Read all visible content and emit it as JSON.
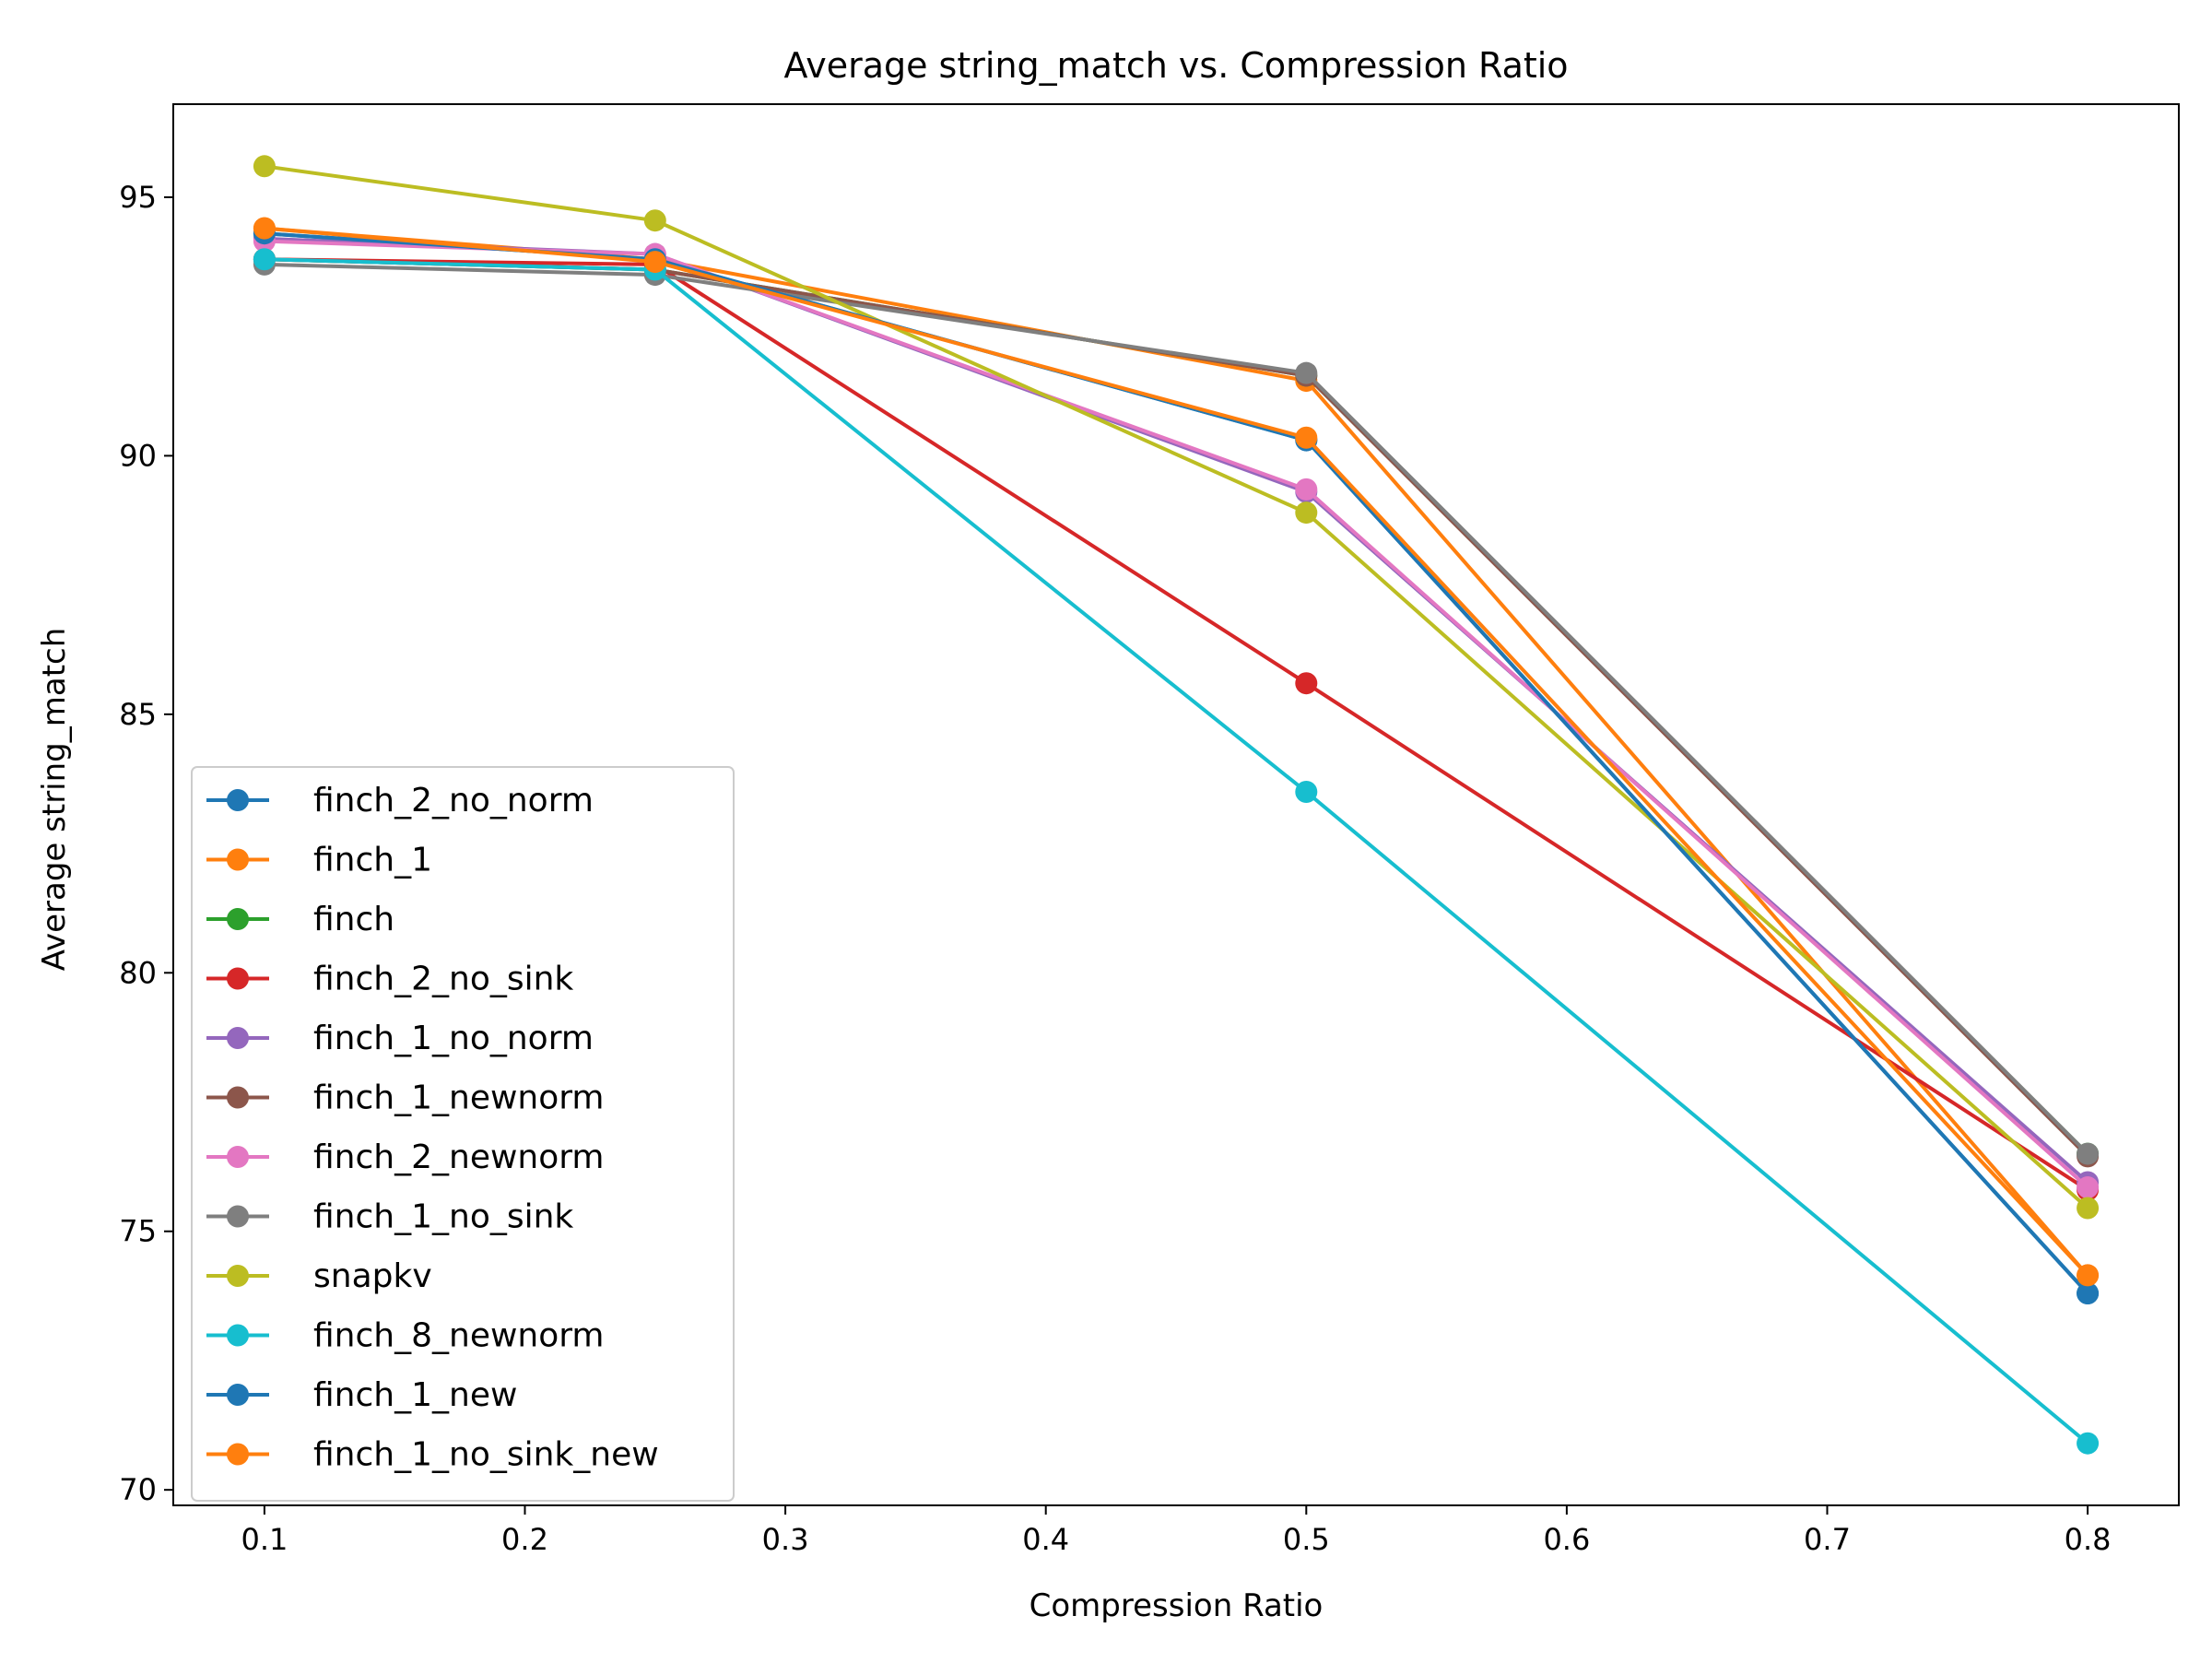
{
  "chart_data": {
    "type": "line",
    "title": "Average string_match vs. Compression Ratio",
    "xlabel": "Compression Ratio",
    "ylabel": "Average string_match",
    "xlim": [
      0.065,
      0.835
    ],
    "ylim": [
      69.7,
      96.8
    ],
    "x": [
      0.1,
      0.25,
      0.5,
      0.8
    ],
    "xticks": [
      0.1,
      0.2,
      0.3,
      0.4,
      0.5,
      0.6,
      0.7,
      0.8
    ],
    "xtick_labels": [
      "0.1",
      "0.2",
      "0.3",
      "0.4",
      "0.5",
      "0.6",
      "0.7",
      "0.8"
    ],
    "yticks": [
      70,
      75,
      80,
      85,
      90,
      95
    ],
    "ytick_labels": [
      "70",
      "75",
      "80",
      "85",
      "90",
      "95"
    ],
    "grid": false,
    "legend_position": "lower-left",
    "series": [
      {
        "name": "finch_2_no_norm",
        "color": "#1f77b4",
        "values": [
          94.3,
          93.8,
          90.3,
          73.8
        ]
      },
      {
        "name": "finch_1",
        "color": "#ff7f0e",
        "values": [
          94.4,
          93.8,
          91.45,
          74.15
        ]
      },
      {
        "name": "finch",
        "color": "#2ca02c",
        "values": [
          93.8,
          93.6,
          91.55,
          76.5
        ]
      },
      {
        "name": "finch_2_no_sink",
        "color": "#d62728",
        "values": [
          93.8,
          93.7,
          85.6,
          75.8
        ]
      },
      {
        "name": "finch_1_no_norm",
        "color": "#9467bd",
        "values": [
          94.2,
          93.9,
          89.3,
          75.95
        ]
      },
      {
        "name": "finch_1_newnorm",
        "color": "#8c564b",
        "values": [
          93.8,
          93.6,
          91.55,
          76.45
        ]
      },
      {
        "name": "finch_2_newnorm",
        "color": "#e377c2",
        "values": [
          94.15,
          93.9,
          89.35,
          75.85
        ]
      },
      {
        "name": "finch_1_no_sink",
        "color": "#7f7f7f",
        "values": [
          93.7,
          93.5,
          91.6,
          76.5
        ]
      },
      {
        "name": "snapkv",
        "color": "#bcbd22",
        "values": [
          95.6,
          94.55,
          88.9,
          75.45
        ]
      },
      {
        "name": "finch_8_newnorm",
        "color": "#17becf",
        "values": [
          93.8,
          93.6,
          83.5,
          70.9
        ]
      },
      {
        "name": "finch_1_new",
        "color": "#1f77b4",
        "values": [
          94.3,
          93.8,
          90.3,
          73.8
        ]
      },
      {
        "name": "finch_1_no_sink_new",
        "color": "#ff7f0e",
        "values": [
          94.4,
          93.75,
          90.35,
          74.15
        ]
      }
    ]
  }
}
